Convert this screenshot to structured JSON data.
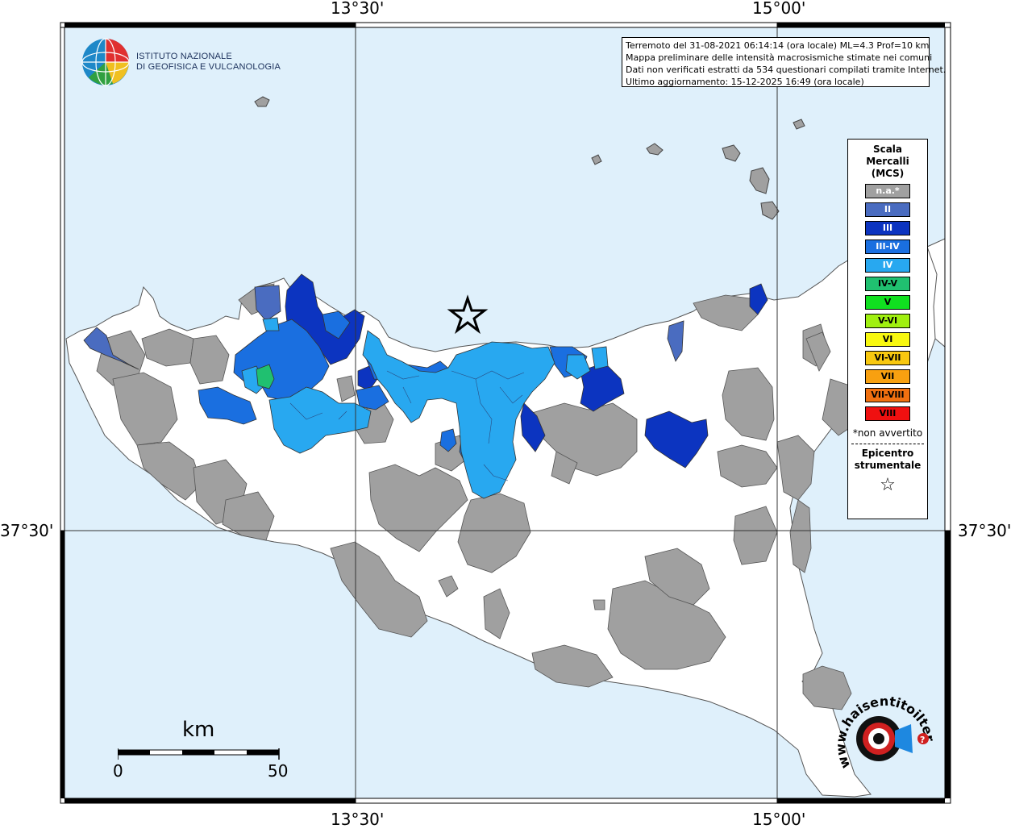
{
  "coords": {
    "top_left": "13°30'",
    "top_right": "15°00'",
    "bottom_left": "13°30'",
    "bottom_right": "15°00'",
    "left_lat": "37°30'",
    "right_lat": "37°30'"
  },
  "info": {
    "line1": "Terremoto del 31-08-2021 06:14:14 (ora locale) ML=4.3 Prof=10 km",
    "line2": "Mappa preliminare delle intensità macrosismiche stimate nei comuni",
    "line3": "Dati non verificati estratti da 534 questionari compilati tramite Internet.",
    "line4": "Ultimo aggiornamento: 15-12-2025 16:49 (ora locale)"
  },
  "logo": {
    "line1": "ISTITUTO NAZIONALE",
    "line2": "DI GEOFISICA E VULCANOLOGIA"
  },
  "legend": {
    "title1": "Scala",
    "title2": "Mercalli",
    "title3": "(MCS)",
    "items": [
      {
        "label": "n.a.*",
        "color": "#a0a0a0",
        "text": "#ffffff"
      },
      {
        "label": "II",
        "color": "#4a6cc0",
        "text": "#ffffff"
      },
      {
        "label": "III",
        "color": "#0c34c0",
        "text": "#ffffff"
      },
      {
        "label": "III-IV",
        "color": "#1a6fe0",
        "text": "#ffffff"
      },
      {
        "label": "IV",
        "color": "#28a8f0",
        "text": "#ffffff"
      },
      {
        "label": "IV-V",
        "color": "#20c070",
        "text": "#000000"
      },
      {
        "label": "V",
        "color": "#10e020",
        "text": "#000000"
      },
      {
        "label": "V-VI",
        "color": "#a0f010",
        "text": "#000000"
      },
      {
        "label": "VI",
        "color": "#f8f810",
        "text": "#000000"
      },
      {
        "label": "VI-VII",
        "color": "#f8c810",
        "text": "#000000"
      },
      {
        "label": "VII",
        "color": "#f8a010",
        "text": "#000000"
      },
      {
        "label": "VII-VIII",
        "color": "#f07010",
        "text": "#000000"
      },
      {
        "label": "VIII",
        "color": "#f01010",
        "text": "#000000"
      }
    ],
    "note": "*non avvertito",
    "epi1": "Epicentro",
    "epi2": "strumentale",
    "star": "☆"
  },
  "scale": {
    "unit": "km",
    "min": "0",
    "max": "50"
  },
  "badge": {
    "text": "www.haisentitoilterremoto.it"
  },
  "colors": {
    "sea": "#dff0fb",
    "land": "#ffffff",
    "gray": "#a0a0a0",
    "ii": "#4a6cc0",
    "iii": "#0c34c0",
    "iiiiv": "#1a6fe0",
    "iv": "#28a8f0",
    "ivv": "#20c070"
  }
}
